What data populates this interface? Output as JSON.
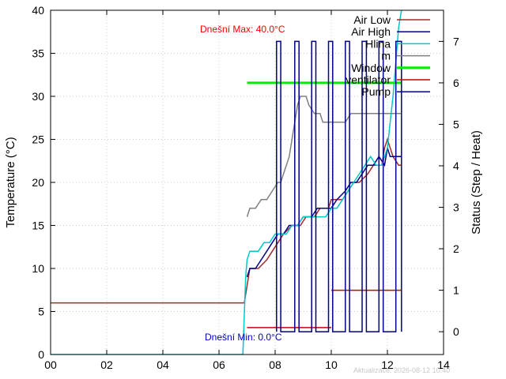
{
  "chart_data": {
    "type": "line",
    "title": "",
    "xlabel": "",
    "ylabel": "Temperature (°C)",
    "y2label": "Status (Step / Heat)",
    "xlim": [
      0,
      14
    ],
    "ylim": [
      0,
      40
    ],
    "y2lim": [
      -0.55,
      7.75
    ],
    "x_ticks": [
      0,
      2,
      4,
      6,
      8,
      10,
      12,
      14
    ],
    "x_tick_labels": [
      "00",
      "02",
      "04",
      "06",
      "08",
      "10",
      "12",
      "14"
    ],
    "y_ticks": [
      0,
      5,
      10,
      15,
      20,
      25,
      30,
      35,
      40
    ],
    "y2_ticks": [
      0,
      1,
      2,
      3,
      4,
      5,
      6,
      7
    ],
    "grid": true,
    "legend_position": "top-right",
    "annotations": {
      "max": "Dnešní Max: 40.0°C",
      "min": "Dnešní Min: 0.0°C",
      "updated": "Aktualizace: 2026-08-12 10:40"
    },
    "series": [
      {
        "name": "Air Low",
        "axis": "y",
        "color": "#a52a2a",
        "points": [
          [
            0,
            6
          ],
          [
            6.9,
            6
          ],
          [
            7.1,
            10
          ],
          [
            7.4,
            10
          ],
          [
            7.7,
            11
          ],
          [
            7.9,
            12
          ],
          [
            8.1,
            13
          ],
          [
            8.3,
            14
          ],
          [
            8.6,
            15
          ],
          [
            8.9,
            15
          ],
          [
            9.1,
            16
          ],
          [
            9.4,
            16
          ],
          [
            9.6,
            17
          ],
          [
            9.9,
            17
          ],
          [
            10.0,
            18
          ],
          [
            10.4,
            18
          ],
          [
            10.6,
            19
          ],
          [
            10.8,
            20
          ],
          [
            11.0,
            20
          ],
          [
            11.3,
            21
          ],
          [
            11.5,
            22
          ],
          [
            11.8,
            22
          ],
          [
            11.9,
            24
          ],
          [
            12.0,
            25
          ],
          [
            12.2,
            23
          ],
          [
            12.4,
            22
          ],
          [
            12.5,
            22
          ]
        ]
      },
      {
        "name": "Air High",
        "axis": "y",
        "color": "#00008b",
        "points": [
          [
            7.0,
            9
          ],
          [
            7.1,
            10
          ],
          [
            7.3,
            10
          ],
          [
            7.5,
            11
          ],
          [
            7.7,
            12
          ],
          [
            7.9,
            13
          ],
          [
            8.1,
            14
          ],
          [
            8.3,
            14
          ],
          [
            8.5,
            15
          ],
          [
            8.8,
            15
          ],
          [
            9.0,
            16
          ],
          [
            9.3,
            16
          ],
          [
            9.5,
            17
          ],
          [
            9.8,
            17
          ],
          [
            10.0,
            17
          ],
          [
            10.2,
            18
          ],
          [
            10.5,
            19
          ],
          [
            10.7,
            20
          ],
          [
            10.9,
            20
          ],
          [
            11.1,
            21
          ],
          [
            11.3,
            22
          ],
          [
            11.5,
            22
          ],
          [
            11.7,
            23
          ],
          [
            11.9,
            22
          ],
          [
            12.0,
            24
          ],
          [
            12.1,
            23
          ],
          [
            12.5,
            23
          ]
        ]
      },
      {
        "name": "Hlina",
        "axis": "y",
        "color": "#00c8c8",
        "points": [
          [
            0,
            0
          ],
          [
            6.85,
            0
          ],
          [
            6.95,
            9
          ],
          [
            7.0,
            11
          ],
          [
            7.1,
            12
          ],
          [
            7.4,
            12
          ],
          [
            7.6,
            13
          ],
          [
            7.8,
            13
          ],
          [
            8.0,
            14
          ],
          [
            8.2,
            14
          ],
          [
            8.4,
            14
          ],
          [
            8.6,
            15
          ],
          [
            8.8,
            15
          ],
          [
            9.0,
            16
          ],
          [
            9.2,
            16
          ],
          [
            9.6,
            16
          ],
          [
            9.8,
            16
          ],
          [
            10.0,
            17
          ],
          [
            10.2,
            17
          ],
          [
            10.4,
            18
          ],
          [
            10.6,
            19
          ],
          [
            10.8,
            20
          ],
          [
            11.0,
            21
          ],
          [
            11.2,
            22
          ],
          [
            11.4,
            23
          ],
          [
            11.6,
            22
          ],
          [
            11.8,
            22
          ],
          [
            12.0,
            24
          ],
          [
            12.1,
            27
          ],
          [
            12.2,
            30
          ],
          [
            12.3,
            34
          ],
          [
            12.4,
            38
          ],
          [
            12.5,
            40
          ]
        ]
      },
      {
        "name": "m",
        "axis": "y",
        "color": "#808080",
        "points": [
          [
            7.0,
            16
          ],
          [
            7.1,
            17
          ],
          [
            7.3,
            17
          ],
          [
            7.5,
            18
          ],
          [
            7.7,
            18
          ],
          [
            7.9,
            19
          ],
          [
            8.1,
            20
          ],
          [
            8.2,
            20
          ],
          [
            8.3,
            21
          ],
          [
            8.4,
            22
          ],
          [
            8.5,
            23
          ],
          [
            8.6,
            25
          ],
          [
            8.7,
            27
          ],
          [
            8.8,
            29
          ],
          [
            8.9,
            30
          ],
          [
            9.0,
            30
          ],
          [
            9.1,
            30
          ],
          [
            9.2,
            29
          ],
          [
            9.4,
            28
          ],
          [
            9.6,
            28
          ],
          [
            9.7,
            27
          ],
          [
            10.0,
            27
          ],
          [
            10.5,
            27
          ],
          [
            10.7,
            28
          ],
          [
            11.0,
            28
          ],
          [
            11.5,
            28
          ],
          [
            12.0,
            28
          ],
          [
            12.5,
            28
          ]
        ]
      },
      {
        "name": "Window",
        "axis": "y2",
        "color": "#00ee00",
        "width": 3,
        "points": [
          [
            7.0,
            6
          ],
          [
            12.5,
            6
          ]
        ]
      },
      {
        "name": "ventilator",
        "axis": "y2",
        "color": "#cc0000",
        "segments": [
          [
            [
              7.0,
              0.1
            ],
            [
              10.0,
              0.1
            ]
          ],
          [
            [
              10.0,
              1.0
            ],
            [
              12.5,
              1.0
            ]
          ]
        ]
      },
      {
        "name": "Pump",
        "axis": "y2",
        "color": "#00008b",
        "points": [
          [
            8.05,
            0
          ],
          [
            8.05,
            7
          ],
          [
            8.2,
            7
          ],
          [
            8.2,
            0
          ],
          [
            8.7,
            0
          ],
          [
            8.7,
            7
          ],
          [
            8.85,
            7
          ],
          [
            8.85,
            0
          ],
          [
            9.3,
            0
          ],
          [
            9.3,
            7
          ],
          [
            9.45,
            7
          ],
          [
            9.45,
            0
          ],
          [
            9.9,
            0
          ],
          [
            9.9,
            7
          ],
          [
            10.05,
            7
          ],
          [
            10.05,
            0
          ],
          [
            10.5,
            0
          ],
          [
            10.5,
            7
          ],
          [
            10.65,
            7
          ],
          [
            10.65,
            0
          ],
          [
            11.1,
            0
          ],
          [
            11.1,
            7
          ],
          [
            11.25,
            7
          ],
          [
            11.25,
            0
          ],
          [
            11.7,
            0
          ],
          [
            11.7,
            7
          ],
          [
            11.85,
            7
          ],
          [
            11.85,
            0
          ],
          [
            12.3,
            0
          ],
          [
            12.3,
            7
          ],
          [
            12.5,
            7
          ],
          [
            12.5,
            0
          ]
        ]
      }
    ]
  }
}
